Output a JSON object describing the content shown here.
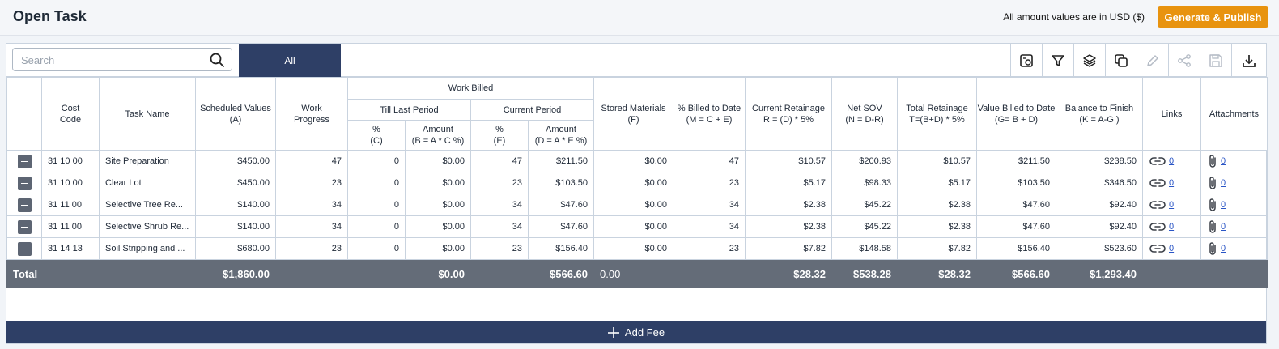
{
  "header": {
    "title": "Open Task",
    "currency_note": "All amount values are in USD ($)",
    "publish_label": "Generate & Publish"
  },
  "toolbar": {
    "search_placeholder": "Search",
    "filter_tab": "All",
    "tools": [
      "settings-icon",
      "filter-icon",
      "layers-icon",
      "copy-icon",
      "edit-icon",
      "share-icon",
      "save-icon",
      "download-icon"
    ]
  },
  "table": {
    "headers": {
      "cost_code": "Cost\nCode",
      "task_name": "Task Name",
      "scheduled": "Scheduled Values\n(A)",
      "progress": "Work\nProgress",
      "work_billed": "Work Billed",
      "till_last": "Till Last Period",
      "current_period": "Current Period",
      "c_pct": "%\n(C)",
      "b_amt": "Amount\n(B = A * C %)",
      "e_pct": "%\n(E)",
      "d_amt": "Amount\n(D = A * E %)",
      "stored": "Stored Materials\n(F)",
      "billed_pct": "% Billed to Date\n(M = C + E)",
      "retainage": "Current Retainage\nR = (D) * 5%",
      "net_sov": "Net SOV\n(N = D-R)",
      "total_ret": "Total Retainage\nT=(B+D) * 5%",
      "value_billed": "Value Billed to Date\n(G= B + D)",
      "balance": "Balance to Finish\n(K = A-G )",
      "links": "Links",
      "attachments": "Attachments"
    },
    "rows": [
      {
        "code": "31 10 00",
        "task": "Site Preparation",
        "scheduled": "$450.00",
        "progress": "47",
        "c": "0",
        "b": "$0.00",
        "e": "47",
        "d": "$211.50",
        "stored": "$0.00",
        "m": "47",
        "r": "$10.57",
        "n": "$200.93",
        "t": "$10.57",
        "g": "$211.50",
        "k": "$238.50",
        "links": "0",
        "attachments": "0"
      },
      {
        "code": "31 10 00",
        "task": "Clear Lot",
        "scheduled": "$450.00",
        "progress": "23",
        "c": "0",
        "b": "$0.00",
        "e": "23",
        "d": "$103.50",
        "stored": "$0.00",
        "m": "23",
        "r": "$5.17",
        "n": "$98.33",
        "t": "$5.17",
        "g": "$103.50",
        "k": "$346.50",
        "links": "0",
        "attachments": "0"
      },
      {
        "code": "31 11 00",
        "task": "Selective Tree Re...",
        "scheduled": "$140.00",
        "progress": "34",
        "c": "0",
        "b": "$0.00",
        "e": "34",
        "d": "$47.60",
        "stored": "$0.00",
        "m": "34",
        "r": "$2.38",
        "n": "$45.22",
        "t": "$2.38",
        "g": "$47.60",
        "k": "$92.40",
        "links": "0",
        "attachments": "0"
      },
      {
        "code": "31 11 00",
        "task": "Selective Shrub Re...",
        "scheduled": "$140.00",
        "progress": "34",
        "c": "0",
        "b": "$0.00",
        "e": "34",
        "d": "$47.60",
        "stored": "$0.00",
        "m": "34",
        "r": "$2.38",
        "n": "$45.22",
        "t": "$2.38",
        "g": "$47.60",
        "k": "$92.40",
        "links": "0",
        "attachments": "0"
      },
      {
        "code": "31 14 13",
        "task": "Soil Stripping and ...",
        "scheduled": "$680.00",
        "progress": "23",
        "c": "0",
        "b": "$0.00",
        "e": "23",
        "d": "$156.40",
        "stored": "$0.00",
        "m": "23",
        "r": "$7.82",
        "n": "$148.58",
        "t": "$7.82",
        "g": "$156.40",
        "k": "$523.60",
        "links": "0",
        "attachments": "0"
      }
    ],
    "total": {
      "label": "Total",
      "scheduled": "$1,860.00",
      "b": "$0.00",
      "d": "$566.60",
      "stored": "0.00",
      "r": "$28.32",
      "n": "$538.28",
      "t": "$28.32",
      "g": "$566.60",
      "k": "$1,293.40"
    }
  },
  "footer": {
    "add_fee_label": "Add Fee"
  }
}
